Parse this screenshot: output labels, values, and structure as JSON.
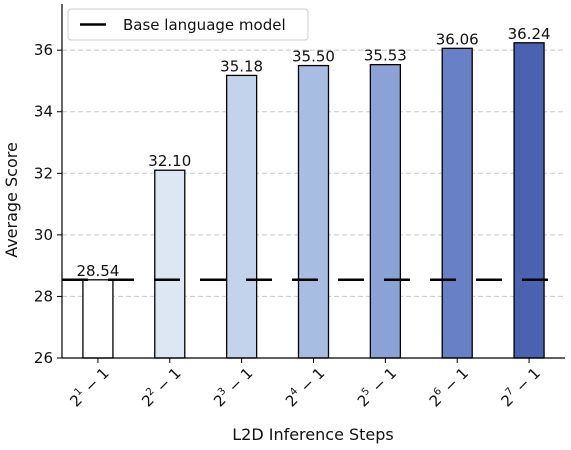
{
  "chart_data": {
    "type": "bar",
    "title": "",
    "xlabel": "L2D Inference Steps",
    "ylabel": "Average Score",
    "ylim": [
      26,
      37.5
    ],
    "yticks": [
      26,
      28,
      30,
      32,
      34,
      36
    ],
    "grid": "y-dashed",
    "categories": [
      {
        "base": "2",
        "exp": "1",
        "suffix": " − 1"
      },
      {
        "base": "2",
        "exp": "2",
        "suffix": " − 1"
      },
      {
        "base": "2",
        "exp": "3",
        "suffix": " − 1"
      },
      {
        "base": "2",
        "exp": "4",
        "suffix": " − 1"
      },
      {
        "base": "2",
        "exp": "5",
        "suffix": " − 1"
      },
      {
        "base": "2",
        "exp": "6",
        "suffix": " − 1"
      },
      {
        "base": "2",
        "exp": "7",
        "suffix": " − 1"
      }
    ],
    "values": [
      28.54,
      32.1,
      35.18,
      35.5,
      35.53,
      36.06,
      36.24
    ],
    "value_labels": [
      "28.54",
      "32.10",
      "35.18",
      "35.50",
      "35.53",
      "36.06",
      "36.24"
    ],
    "bar_colors": [
      "#ffffff",
      "#dde6f3",
      "#c4d3ec",
      "#a8bde2",
      "#8aa2d6",
      "#6880c6",
      "#4b62b0"
    ],
    "reference_line": {
      "name": "Base language model",
      "value": 28.54,
      "style": "dashed",
      "color": "#000000"
    },
    "legend": {
      "position": "top-left",
      "entries": [
        "Base language model"
      ]
    }
  }
}
